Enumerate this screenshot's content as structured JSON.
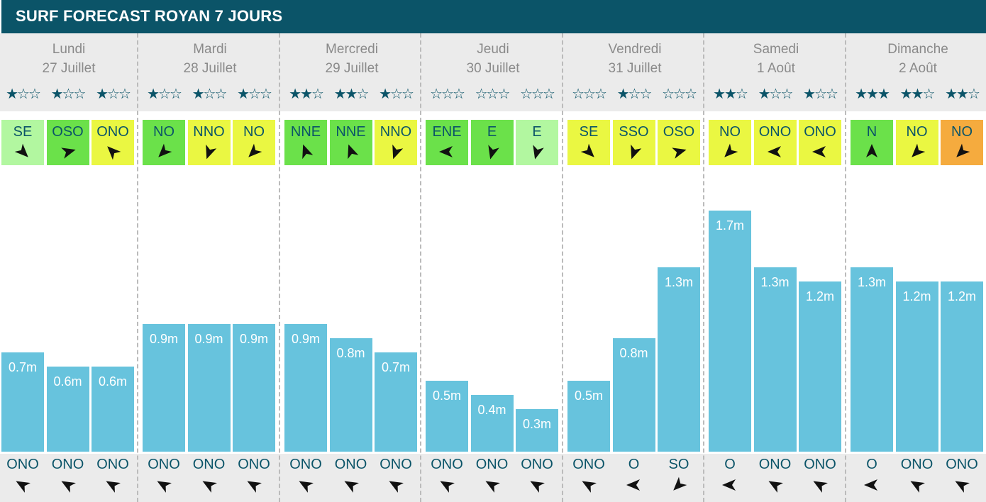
{
  "title": "SURF FORECAST ROYAN 7 JOURS",
  "colors": {
    "header": "#0b5468",
    "bar": "#67c3dd",
    "band": "#ebebeb",
    "text": "#0b5468",
    "day_text": "#8a8a8a",
    "wind_light_green": "#b2f7a0",
    "wind_green": "#6be14a",
    "wind_yellow": "#eaf742",
    "wind_orange": "#f5ab3e"
  },
  "days": [
    {
      "name": "Lundi",
      "date": "27 Juillet"
    },
    {
      "name": "Mardi",
      "date": "28 Juillet"
    },
    {
      "name": "Mercredi",
      "date": "29 Juillet"
    },
    {
      "name": "Jeudi",
      "date": "30 Juillet"
    },
    {
      "name": "Vendredi",
      "date": "31 Juillet"
    },
    {
      "name": "Samedi",
      "date": "1 Août"
    },
    {
      "name": "Dimanche",
      "date": "2 Août"
    }
  ],
  "chart_data": {
    "type": "bar",
    "ylabel": "",
    "ylim": [
      0,
      1.7
    ],
    "unit": "m",
    "categories": [
      "Lundi 27 Juillet",
      "Lundi 27 Juillet",
      "Lundi 27 Juillet",
      "Mardi 28 Juillet",
      "Mardi 28 Juillet",
      "Mardi 28 Juillet",
      "Mercredi 29 Juillet",
      "Mercredi 29 Juillet",
      "Mercredi 29 Juillet",
      "Jeudi 30 Juillet",
      "Jeudi 30 Juillet",
      "Jeudi 30 Juillet",
      "Vendredi 31 Juillet",
      "Vendredi 31 Juillet",
      "Vendredi 31 Juillet",
      "Samedi 1 Août",
      "Samedi 1 Août",
      "Samedi 1 Août",
      "Dimanche 2 Août",
      "Dimanche 2 Août",
      "Dimanche 2 Août"
    ],
    "values": [
      0.7,
      0.6,
      0.6,
      0.9,
      0.9,
      0.9,
      0.9,
      0.8,
      0.7,
      0.5,
      0.4,
      0.3,
      0.5,
      0.8,
      1.3,
      1.7,
      1.3,
      1.2,
      1.3,
      1.2,
      1.2
    ],
    "labels": [
      "0.7m",
      "0.6m",
      "0.6m",
      "0.9m",
      "0.9m",
      "0.9m",
      "0.9m",
      "0.8m",
      "0.7m",
      "0.5m",
      "0.4m",
      "0.3m",
      "0.5m",
      "0.8m",
      "1.3m",
      "1.7m",
      "1.3m",
      "1.2m",
      "1.3m",
      "1.2m",
      "1.2m"
    ],
    "stars": [
      1,
      1,
      1,
      1,
      1,
      1,
      2,
      2,
      1,
      0,
      0,
      0,
      0,
      1,
      0,
      2,
      1,
      1,
      3,
      2,
      2
    ],
    "stars_max": 3,
    "wind": [
      {
        "dir": "SE",
        "color": "light_green",
        "arrow_angle": 135
      },
      {
        "dir": "OSO",
        "color": "green",
        "arrow_angle": 75
      },
      {
        "dir": "ONO",
        "color": "yellow",
        "arrow_angle": -45
      },
      {
        "dir": "NO",
        "color": "green",
        "arrow_angle": -135
      },
      {
        "dir": "NNO",
        "color": "yellow",
        "arrow_angle": -160
      },
      {
        "dir": "NO",
        "color": "yellow",
        "arrow_angle": -135
      },
      {
        "dir": "NNE",
        "color": "green",
        "arrow_angle": -20
      },
      {
        "dir": "NNE",
        "color": "green",
        "arrow_angle": -20
      },
      {
        "dir": "NNO",
        "color": "yellow",
        "arrow_angle": -160
      },
      {
        "dir": "ENE",
        "color": "green",
        "arrow_angle": -90
      },
      {
        "dir": "E",
        "color": "green",
        "arrow_angle": -165
      },
      {
        "dir": "E",
        "color": "light_green",
        "arrow_angle": -165
      },
      {
        "dir": "SE",
        "color": "yellow",
        "arrow_angle": 135
      },
      {
        "dir": "SSO",
        "color": "yellow",
        "arrow_angle": -160
      },
      {
        "dir": "OSO",
        "color": "yellow",
        "arrow_angle": 75
      },
      {
        "dir": "NO",
        "color": "yellow",
        "arrow_angle": -135
      },
      {
        "dir": "ONO",
        "color": "yellow",
        "arrow_angle": -90
      },
      {
        "dir": "ONO",
        "color": "yellow",
        "arrow_angle": -90
      },
      {
        "dir": "N",
        "color": "green",
        "arrow_angle": 0
      },
      {
        "dir": "NO",
        "color": "yellow",
        "arrow_angle": -135
      },
      {
        "dir": "NO",
        "color": "orange",
        "arrow_angle": -135
      }
    ],
    "swell": [
      {
        "dir": "ONO",
        "arrow_angle": -60
      },
      {
        "dir": "ONO",
        "arrow_angle": -60
      },
      {
        "dir": "ONO",
        "arrow_angle": -60
      },
      {
        "dir": "ONO",
        "arrow_angle": -60
      },
      {
        "dir": "ONO",
        "arrow_angle": -60
      },
      {
        "dir": "ONO",
        "arrow_angle": -60
      },
      {
        "dir": "ONO",
        "arrow_angle": -60
      },
      {
        "dir": "ONO",
        "arrow_angle": -60
      },
      {
        "dir": "ONO",
        "arrow_angle": -60
      },
      {
        "dir": "ONO",
        "arrow_angle": -60
      },
      {
        "dir": "ONO",
        "arrow_angle": -60
      },
      {
        "dir": "ONO",
        "arrow_angle": -60
      },
      {
        "dir": "ONO",
        "arrow_angle": -60
      },
      {
        "dir": "O",
        "arrow_angle": -90
      },
      {
        "dir": "SO",
        "arrow_angle": -135
      },
      {
        "dir": "O",
        "arrow_angle": -90
      },
      {
        "dir": "ONO",
        "arrow_angle": -60
      },
      {
        "dir": "ONO",
        "arrow_angle": -60
      },
      {
        "dir": "O",
        "arrow_angle": -90
      },
      {
        "dir": "ONO",
        "arrow_angle": -60
      },
      {
        "dir": "ONO",
        "arrow_angle": -60
      }
    ]
  }
}
